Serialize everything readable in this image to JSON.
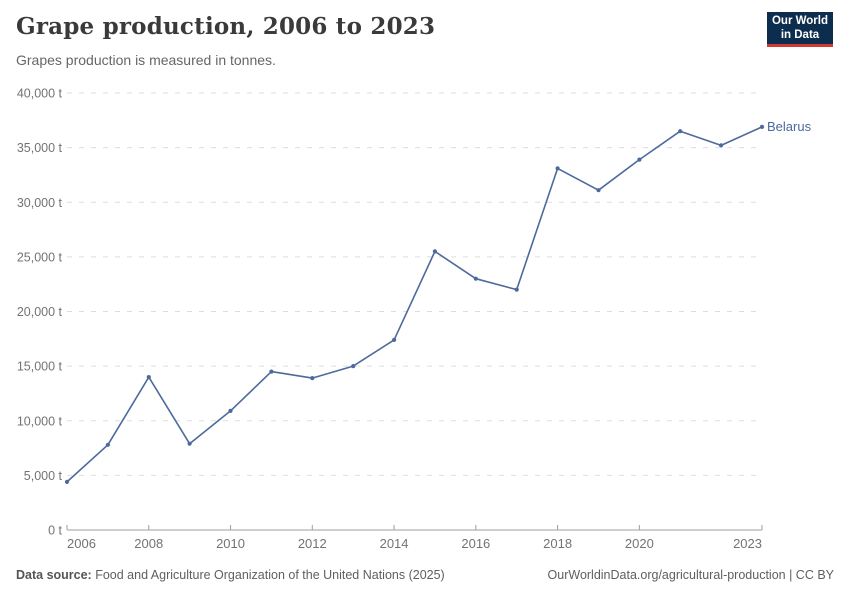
{
  "header": {
    "title": "Grape production, 2006 to 2023",
    "subtitle": "Grapes production is measured in tonnes.",
    "logo": {
      "line1": "Our World",
      "line2": "in Data"
    }
  },
  "chart_data": {
    "type": "line",
    "title": "Grape production, 2006 to 2023",
    "subtitle": "Grapes production is measured in tonnes.",
    "unit": "tonnes",
    "x": [
      2006,
      2007,
      2008,
      2009,
      2010,
      2011,
      2012,
      2013,
      2014,
      2015,
      2016,
      2017,
      2018,
      2019,
      2020,
      2021,
      2022,
      2023
    ],
    "series": [
      {
        "name": "Belarus",
        "color": "#4C6A9C",
        "values": [
          4400,
          7800,
          14000,
          7900,
          10900,
          14500,
          13900,
          15000,
          17400,
          25500,
          23000,
          22000,
          33100,
          31100,
          33900,
          36500,
          35200,
          36900
        ]
      }
    ],
    "xlim": [
      2006,
      2023
    ],
    "ylim": [
      0,
      40000
    ],
    "x_ticks": [
      2006,
      2008,
      2010,
      2012,
      2014,
      2016,
      2018,
      2020,
      2023
    ],
    "y_ticks": [
      {
        "value": 0,
        "label": "0 t"
      },
      {
        "value": 5000,
        "label": "5,000 t"
      },
      {
        "value": 10000,
        "label": "10,000 t"
      },
      {
        "value": 15000,
        "label": "15,000 t"
      },
      {
        "value": 20000,
        "label": "20,000 t"
      },
      {
        "value": 25000,
        "label": "25,000 t"
      },
      {
        "value": 30000,
        "label": "30,000 t"
      },
      {
        "value": 35000,
        "label": "35,000 t"
      },
      {
        "value": 40000,
        "label": "40,000 t"
      }
    ],
    "grid": "horizontal-dashed",
    "legend": "inline-end-label"
  },
  "colors": {
    "line": "#4C6A9C",
    "grid": "#dedede",
    "axis": "#9e9e9e",
    "tick_text": "#737373",
    "title": "#3a3a3a",
    "subtitle": "#666666",
    "logo_bg": "#0d2d4e",
    "logo_accent": "#cf3a32"
  },
  "footer": {
    "source_label": "Data source:",
    "source_text": " Food and Agriculture Organization of the United Nations (2025)",
    "link_text": "OurWorldinData.org/agricultural-production | CC BY"
  }
}
